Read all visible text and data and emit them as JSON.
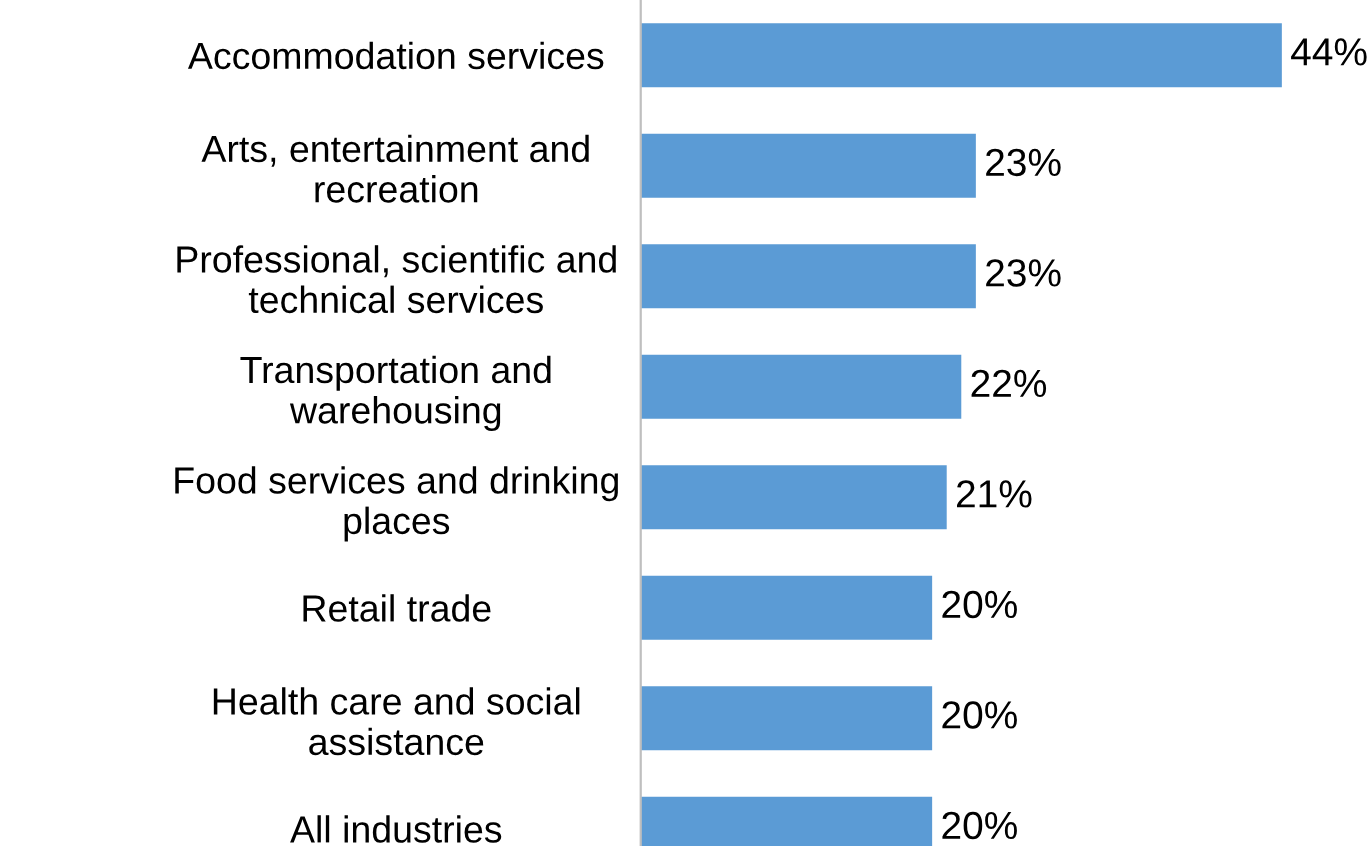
{
  "chart_data": {
    "type": "bar",
    "orientation": "horizontal",
    "categories": [
      "Accommodation services",
      "Arts, entertainment and\nrecreation",
      "Professional, scientific and\ntechnical services",
      "Transportation and\nwarehousing",
      "Food services and drinking\nplaces",
      "Retail trade",
      "Health care and social\nassistance",
      "All industries"
    ],
    "values": [
      44,
      23,
      23,
      22,
      21,
      20,
      20,
      20
    ],
    "value_labels": [
      "44%",
      "23%",
      "23%",
      "22%",
      "21%",
      "20%",
      "20%",
      "20%"
    ],
    "color": "#5b9bd5",
    "grid": false,
    "legend": false
  }
}
